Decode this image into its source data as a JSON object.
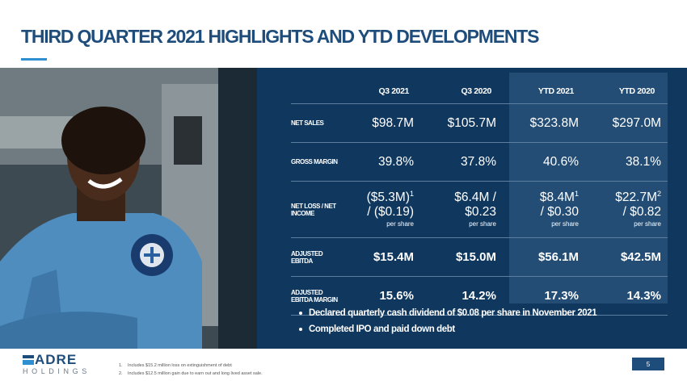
{
  "title": "THIRD QUARTER 2021 HIGHLIGHTS AND YTD DEVELOPMENTS",
  "table": {
    "headers": [
      "Q3 2021",
      "Q3 2020",
      "YTD 2021",
      "YTD 2020"
    ],
    "rows": [
      {
        "label": "NET SALES",
        "values": [
          "$98.7M",
          "$105.7M",
          "$323.8M",
          "$297.0M"
        ]
      },
      {
        "label": "GROSS MARGIN",
        "values": [
          "39.8%",
          "37.8%",
          "40.6%",
          "38.1%"
        ]
      },
      {
        "label": "NET LOSS / NET INCOME",
        "cells": [
          {
            "line1": "($5.3M)",
            "sup": "1",
            "line2": "/ ($0.19)",
            "note": "per share"
          },
          {
            "line1": "$6.4M /",
            "sup": "",
            "line2": "$0.23",
            "note": "per share"
          },
          {
            "line1": "$8.4M",
            "sup": "1",
            "line2": "/ $0.30",
            "note": "per share"
          },
          {
            "line1": "$22.7M",
            "sup": "2",
            "line2": "/ $0.82",
            "note": "per share"
          }
        ]
      },
      {
        "label": "ADJUSTED EBITDA",
        "values": [
          "$15.4M",
          "$15.0M",
          "$56.1M",
          "$42.5M"
        ]
      },
      {
        "label": "ADJUSTED EBITDA MARGIN",
        "values": [
          "15.6%",
          "14.2%",
          "17.3%",
          "14.3%"
        ]
      }
    ]
  },
  "bullets": [
    "Declared quarterly cash dividend of $0.08 per share in November 2021",
    "Completed IPO and paid down debt"
  ],
  "logo": {
    "main": "ADRE",
    "sub": "HOLDINGS"
  },
  "footnotes": [
    {
      "num": "1.",
      "text": "Includes $15.2 million loss on extinguishment of debt"
    },
    {
      "num": "2.",
      "text": "Includes $12.5 million gain due to earn out and long lived asset sale."
    }
  ],
  "page_number": "5",
  "colors": {
    "navy": "#10385f",
    "title_blue": "#1e4d7b",
    "accent_blue": "#2f8fd0",
    "ytd_highlight": "#234d74"
  }
}
